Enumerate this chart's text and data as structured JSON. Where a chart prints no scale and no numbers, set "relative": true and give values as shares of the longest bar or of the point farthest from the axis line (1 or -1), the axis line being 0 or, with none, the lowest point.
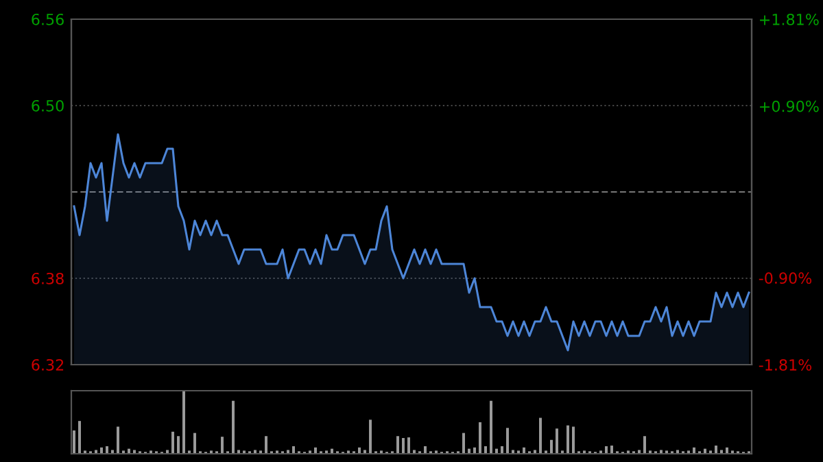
{
  "chart_data": [
    {
      "type": "area",
      "categories": [
        null,
        null,
        null,
        null,
        null,
        null,
        null,
        null,
        null,
        null,
        null,
        null,
        null,
        null,
        null,
        null,
        null,
        null,
        null,
        null,
        null,
        null,
        null,
        null,
        null,
        null,
        null,
        null,
        null,
        null,
        null,
        null,
        null,
        null,
        null,
        null,
        null,
        null,
        null,
        null,
        null,
        null,
        null,
        null,
        null,
        null,
        null,
        null,
        null,
        null,
        null,
        null,
        null,
        null,
        null,
        null,
        null,
        null,
        null,
        null,
        null,
        null,
        null,
        null,
        null,
        null,
        null,
        null,
        null,
        null,
        null,
        null,
        null,
        null,
        null,
        null,
        null,
        null,
        null,
        null,
        null,
        null,
        null,
        null,
        null,
        null,
        null,
        null,
        null,
        null,
        null,
        null,
        null,
        null,
        null,
        null,
        null,
        null,
        null,
        null,
        null,
        null,
        null,
        null,
        null,
        null,
        null,
        null,
        null,
        null,
        null,
        null,
        null,
        null,
        null,
        null,
        null,
        null,
        null,
        null,
        null,
        null,
        null,
        null
      ],
      "series": [
        {
          "color": "#4d86d8",
          "values": [
            6.43,
            6.41,
            6.43,
            6.46,
            6.45,
            6.46,
            6.42,
            6.45,
            6.48,
            6.46,
            6.45,
            6.46,
            6.45,
            6.46,
            6.46,
            6.46,
            6.46,
            6.47,
            6.47,
            6.43,
            6.42,
            6.4,
            6.42,
            6.41,
            6.42,
            6.41,
            6.42,
            6.41,
            6.41,
            6.4,
            6.39,
            6.4,
            6.4,
            6.4,
            6.4,
            6.39,
            6.39,
            6.39,
            6.4,
            6.38,
            6.39,
            6.4,
            6.4,
            6.39,
            6.4,
            6.39,
            6.41,
            6.4,
            6.4,
            6.41,
            6.41,
            6.41,
            6.4,
            6.39,
            6.4,
            6.4,
            6.42,
            6.43,
            6.4,
            6.39,
            6.38,
            6.39,
            6.4,
            6.39,
            6.4,
            6.39,
            6.4,
            6.39,
            6.39,
            6.39,
            6.39,
            6.39,
            6.37,
            6.38,
            6.36,
            6.36,
            6.36,
            6.35,
            6.35,
            6.34,
            6.35,
            6.34,
            6.35,
            6.34,
            6.35,
            6.35,
            6.36,
            6.35,
            6.35,
            6.34,
            6.33,
            6.35,
            6.34,
            6.35,
            6.34,
            6.35,
            6.35,
            6.34,
            6.35,
            6.34,
            6.35,
            6.34,
            6.34,
            6.34,
            6.35,
            6.35,
            6.36,
            6.35,
            6.36,
            6.34,
            6.35,
            6.34,
            6.35,
            6.34,
            6.35,
            6.35,
            6.35,
            6.37,
            6.36,
            6.37,
            6.36,
            6.37,
            6.36,
            6.37
          ]
        }
      ],
      "ylim": [
        6.32,
        6.56
      ],
      "yticks": [
        {
          "value": 6.32,
          "label": "6.32"
        },
        {
          "value": 6.38,
          "label": "6.38"
        },
        {
          "value": 6.5,
          "label": "6.50"
        },
        {
          "value": 6.56,
          "label": "6.56"
        }
      ],
      "y2lim": [
        -1.81,
        1.81
      ],
      "y2ticks": [
        {
          "value": -1.81,
          "label": "-1.81%"
        },
        {
          "value": -0.9,
          "label": "-0.90%"
        },
        {
          "value": 0.9,
          "label": "+0.90%"
        },
        {
          "value": 1.81,
          "label": "+1.81%"
        }
      ],
      "ref_lines": [
        {
          "axis": "y",
          "value": 6.44,
          "label": null,
          "color": "#777777",
          "line_style": "dashed"
        }
      ],
      "grid": "y",
      "tick_labels": "y"
    },
    {
      "type": "bar",
      "relative": true,
      "categories": [
        null,
        null,
        null,
        null,
        null,
        null,
        null,
        null,
        null,
        null,
        null,
        null,
        null,
        null,
        null,
        null,
        null,
        null,
        null,
        null,
        null,
        null,
        null,
        null,
        null,
        null,
        null,
        null,
        null,
        null,
        null,
        null,
        null,
        null,
        null,
        null,
        null,
        null,
        null,
        null,
        null,
        null,
        null,
        null,
        null,
        null,
        null,
        null,
        null,
        null,
        null,
        null,
        null,
        null,
        null,
        null,
        null,
        null,
        null,
        null,
        null,
        null,
        null,
        null,
        null,
        null,
        null,
        null,
        null,
        null,
        null,
        null,
        null,
        null,
        null,
        null,
        null,
        null,
        null,
        null,
        null,
        null,
        null,
        null,
        null,
        null,
        null,
        null,
        null,
        null,
        null,
        null,
        null,
        null,
        null,
        null,
        null,
        null,
        null,
        null,
        null,
        null,
        null,
        null,
        null,
        null,
        null,
        null,
        null,
        null,
        null,
        null,
        null,
        null,
        null,
        null,
        null,
        null,
        null,
        null,
        null,
        null,
        null,
        null
      ],
      "color": "#9a9a9a",
      "values": [
        0.37,
        0.52,
        0.05,
        0.04,
        0.06,
        0.1,
        0.12,
        0.06,
        0.43,
        0.05,
        0.08,
        0.06,
        0.04,
        0.03,
        0.05,
        0.04,
        0.03,
        0.06,
        0.35,
        0.28,
        1.0,
        0.05,
        0.33,
        0.04,
        0.03,
        0.05,
        0.04,
        0.27,
        0.04,
        0.84,
        0.06,
        0.05,
        0.04,
        0.06,
        0.05,
        0.28,
        0.04,
        0.05,
        0.04,
        0.06,
        0.12,
        0.04,
        0.03,
        0.05,
        0.1,
        0.04,
        0.05,
        0.08,
        0.04,
        0.03,
        0.05,
        0.04,
        0.1,
        0.06,
        0.54,
        0.04,
        0.05,
        0.03,
        0.04,
        0.28,
        0.25,
        0.26,
        0.06,
        0.04,
        0.12,
        0.04,
        0.05,
        0.03,
        0.04,
        0.03,
        0.04,
        0.33,
        0.08,
        0.1,
        0.5,
        0.12,
        0.84,
        0.08,
        0.12,
        0.41,
        0.06,
        0.05,
        0.1,
        0.04,
        0.06,
        0.57,
        0.05,
        0.22,
        0.4,
        0.05,
        0.45,
        0.43,
        0.04,
        0.05,
        0.04,
        0.03,
        0.05,
        0.12,
        0.13,
        0.04,
        0.03,
        0.05,
        0.04,
        0.06,
        0.28,
        0.05,
        0.04,
        0.06,
        0.05,
        0.04,
        0.06,
        0.04,
        0.05,
        0.1,
        0.04,
        0.08,
        0.05,
        0.13,
        0.06,
        0.1,
        0.05,
        0.04,
        0.03,
        0.04
      ],
      "grid": false
    }
  ]
}
